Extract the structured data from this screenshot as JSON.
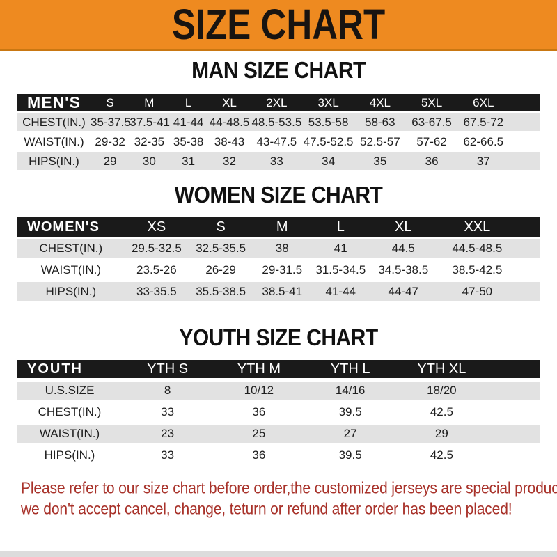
{
  "banner": {
    "title": "SIZE CHART"
  },
  "men": {
    "heading": "MAN SIZE CHART",
    "label": "MEN'S",
    "columns": [
      "S",
      "M",
      "L",
      "XL",
      "2XL",
      "3XL",
      "4XL",
      "5XL",
      "6XL"
    ],
    "rows": [
      {
        "label": "CHEST(IN.)",
        "values": [
          "35-37.5",
          "37.5-41",
          "41-44",
          "44-48.5",
          "48.5-53.5",
          "53.5-58",
          "58-63",
          "63-67.5",
          "67.5-72"
        ]
      },
      {
        "label": "WAIST(IN.)",
        "values": [
          "29-32",
          "32-35",
          "35-38",
          "38-43",
          "43-47.5",
          "47.5-52.5",
          "52.5-57",
          "57-62",
          "62-66.5"
        ]
      },
      {
        "label": "HIPS(IN.)",
        "values": [
          "29",
          "30",
          "31",
          "32",
          "33",
          "34",
          "35",
          "36",
          "37"
        ]
      }
    ]
  },
  "women": {
    "heading": "WOMEN SIZE CHART",
    "label": "WOMEN'S",
    "columns": [
      "XS",
      "S",
      "M",
      "L",
      "XL",
      "XXL"
    ],
    "rows": [
      {
        "label": "CHEST(IN.)",
        "values": [
          "29.5-32.5",
          "32.5-35.5",
          "38",
          "41",
          "44.5",
          "44.5-48.5"
        ]
      },
      {
        "label": "WAIST(IN.)",
        "values": [
          "23.5-26",
          "26-29",
          "29-31.5",
          "31.5-34.5",
          "34.5-38.5",
          "38.5-42.5"
        ]
      },
      {
        "label": "HIPS(IN.)",
        "values": [
          "33-35.5",
          "35.5-38.5",
          "38.5-41",
          "41-44",
          "44-47",
          "47-50"
        ]
      }
    ]
  },
  "youth": {
    "heading": "YOUTH SIZE CHART",
    "label": "YOUTH",
    "columns": [
      "YTH S",
      "YTH M",
      "YTH L",
      "YTH XL"
    ],
    "rows": [
      {
        "label": "U.S.SIZE",
        "values": [
          "8",
          "10/12",
          "14/16",
          "18/20"
        ]
      },
      {
        "label": "CHEST(IN.)",
        "values": [
          "33",
          "36",
          "39.5",
          "42.5"
        ]
      },
      {
        "label": "WAIST(IN.)",
        "values": [
          "23",
          "25",
          "27",
          "29"
        ]
      },
      {
        "label": "HIPS(IN.)",
        "values": [
          "33",
          "36",
          "39.5",
          "42.5"
        ]
      }
    ]
  },
  "footer": {
    "line1": "Please refer to our size chart before order,the customized jerseys are special products,",
    "line2": "we don't accept cancel, change, teturn or refund after order has been placed!"
  },
  "colors": {
    "banner_orange": "#EE8A20",
    "header_black": "#1A1A1A",
    "row_gray": "#E2E2E2",
    "note_red": "#A8322A",
    "strip_gray": "#DCDCDC"
  }
}
